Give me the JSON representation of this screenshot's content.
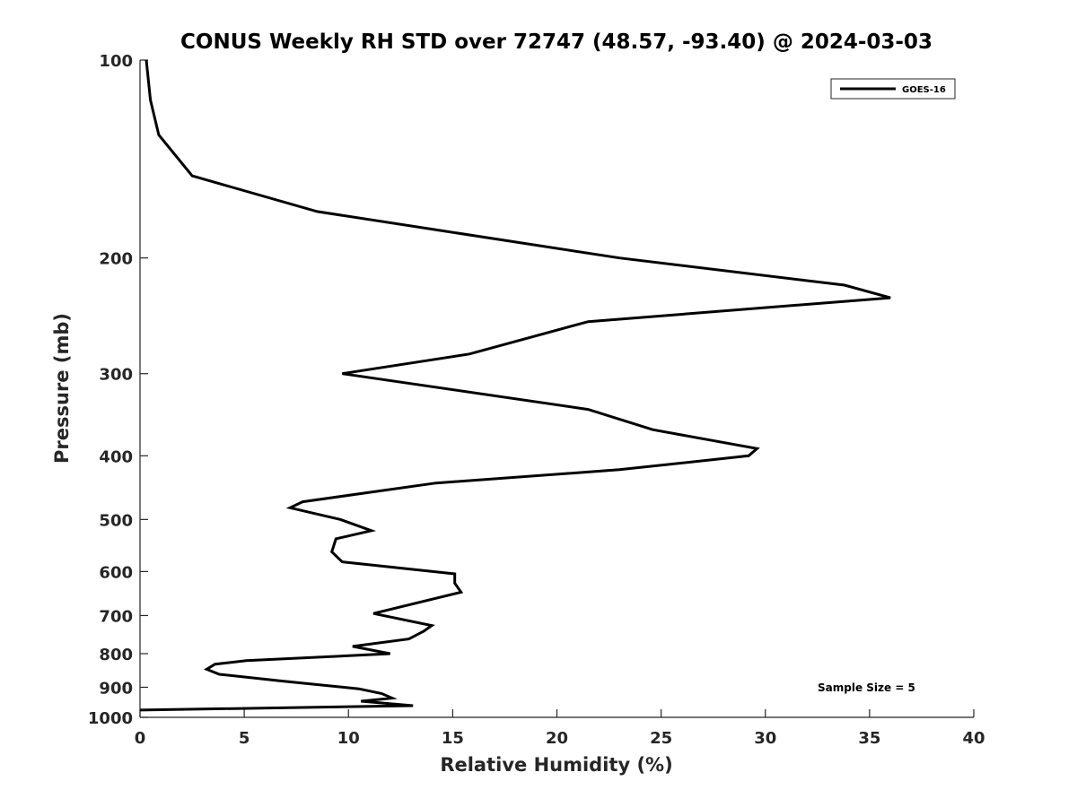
{
  "chart_data": {
    "type": "line",
    "title": "CONUS Weekly RH STD over 72747 (48.57, -93.40) @ 2024-03-03",
    "xlabel": "Relative Humidity (%)",
    "ylabel": "Pressure (mb)",
    "xlim": [
      0,
      40
    ],
    "ylim": [
      100,
      1000
    ],
    "yscale": "log",
    "y_reversed": true,
    "grid": false,
    "x_ticks": [
      0,
      5,
      10,
      15,
      20,
      25,
      30,
      35,
      40
    ],
    "y_ticks": [
      100,
      200,
      300,
      400,
      500,
      600,
      700,
      800,
      900,
      1000
    ],
    "legend": {
      "position": "top-right",
      "entries": [
        "GOES-16"
      ]
    },
    "annotation": "Sample Size = 5",
    "series": [
      {
        "name": "GOES-16",
        "color": "#000000",
        "x": [
          0.3,
          0.5,
          0.9,
          2.5,
          8.5,
          23.0,
          33.8,
          36.0,
          21.5,
          15.8,
          9.7,
          21.5,
          24.6,
          29.6,
          29.2,
          23.0,
          14.2,
          7.8,
          7.2,
          9.6,
          11.1,
          9.4,
          9.2,
          9.7,
          15.1,
          15.1,
          15.4,
          11.2,
          14.0,
          13.6,
          12.9,
          10.2,
          12.0,
          5.1,
          3.6,
          3.2,
          3.8,
          6.7,
          10.5,
          11.6,
          12.1,
          10.6,
          13.1,
          0.0
        ],
        "y": [
          100,
          115,
          130,
          150,
          170,
          200,
          220,
          230,
          250,
          280,
          300,
          340,
          365,
          390,
          400,
          420,
          440,
          470,
          480,
          500,
          520,
          535,
          560,
          580,
          605,
          625,
          645,
          695,
          725,
          740,
          760,
          780,
          800,
          820,
          830,
          845,
          860,
          880,
          905,
          920,
          935,
          945,
          960,
          975
        ]
      }
    ]
  }
}
